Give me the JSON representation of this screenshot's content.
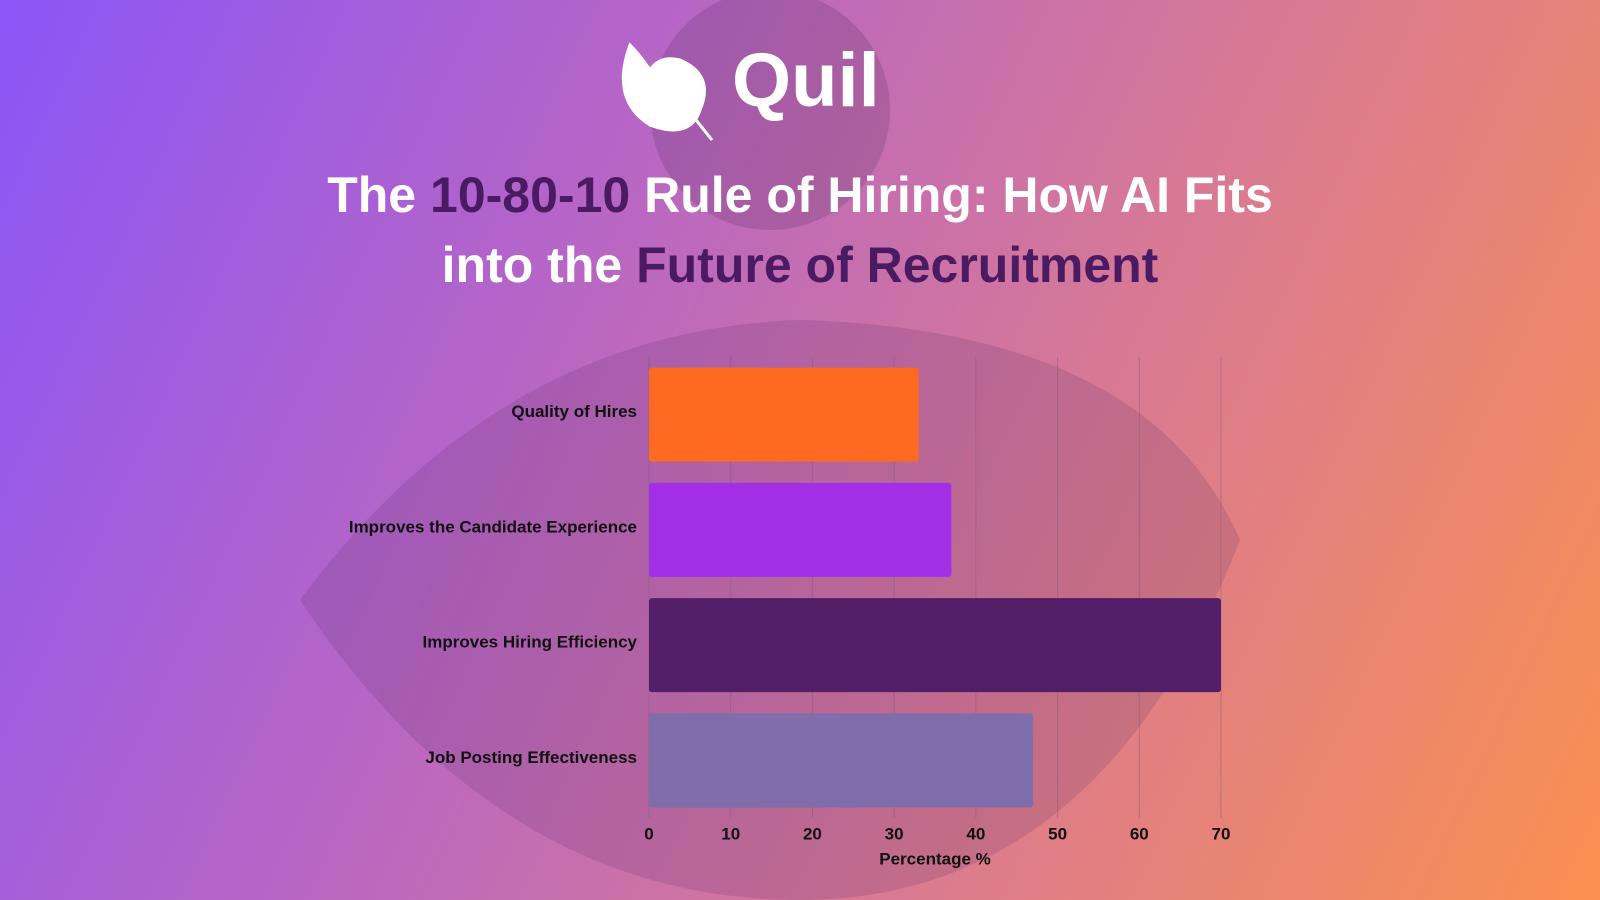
{
  "brand": "Quil",
  "chart_data": {
    "type": "barh",
    "title": [
      {
        "text": "The",
        "color": "#ffffff"
      },
      {
        "text": "10-80-10",
        "color": "#4a1a63"
      },
      {
        "text": "Rule of Hiring: How AI Fits into the",
        "color": "#ffffff"
      },
      {
        "text": "Future of Recruitment",
        "color": "#4a1a63"
      }
    ],
    "categories": [
      "Quality of Hires",
      "Improves the Candidate Experience",
      "Improves Hiring Efficiency",
      "Job Posting Effectiveness"
    ],
    "values": [
      33,
      37,
      70,
      47
    ],
    "colors": [
      "#ff6a22",
      "#a22fe6",
      "#521e68",
      "#7f6eab"
    ],
    "xlim": [
      0,
      70
    ],
    "xticks": [
      0,
      10,
      20,
      30,
      40,
      50,
      60,
      70
    ],
    "xlabel": "Percentage %",
    "grid": true
  }
}
